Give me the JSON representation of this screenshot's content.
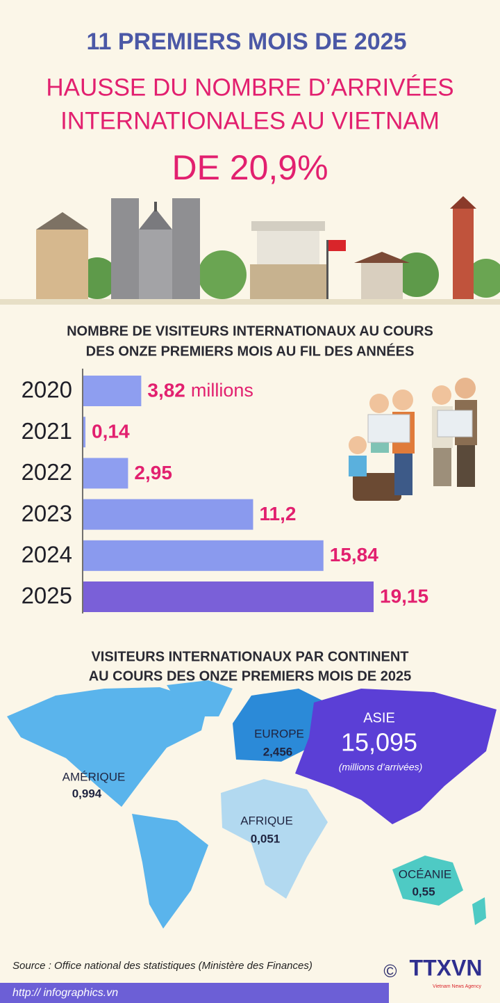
{
  "header": {
    "line1": "11 PREMIERS MOIS DE 2025",
    "line2": "HAUSSE DU NOMBRE D’ARRIVÉES",
    "line3": "INTERNATIONALES AU VIETNAM",
    "line4": "DE 20,9%"
  },
  "chart_data": {
    "type": "bar",
    "orientation": "horizontal",
    "title": [
      "NOMBRE DE VISITEURS INTERNATIONAUX AU COURS",
      "DES ONZE PREMIERS MOIS AU FIL DES ANNÉES"
    ],
    "categories": [
      "2020",
      "2021",
      "2022",
      "2023",
      "2024",
      "2025"
    ],
    "values": [
      3.82,
      0.14,
      2.95,
      11.2,
      15.84,
      19.15
    ],
    "value_labels": [
      "3,82",
      "0,14",
      "2,95",
      "11,2",
      "15,84",
      "19,15"
    ],
    "unit": "millions",
    "colors": [
      "#8e9ef0",
      "#8e9ef0",
      "#8e9ef0",
      "#8a9aee",
      "#8a9aee",
      "#7a60d8"
    ]
  },
  "map": {
    "title": [
      "VISITEURS INTERNATIONAUX PAR CONTINENT",
      "AU COURS DES ONZE PREMIERS MOIS DE 2025"
    ],
    "regions": [
      {
        "name": "AMÉRIQUE",
        "value": "0,994"
      },
      {
        "name": "EUROPE",
        "value": "2,456"
      },
      {
        "name": "ASIE",
        "value": "15,095",
        "note": "(millions d’arrivées)"
      },
      {
        "name": "AFRIQUE",
        "value": "0,051"
      },
      {
        "name": "OCÉANIE",
        "value": "0,55"
      }
    ]
  },
  "footer": {
    "source": "Source : Office national des statistiques (Ministère des Finances)",
    "copyright": "©",
    "logo": "TTXVN",
    "agency": "Vietnam News Agency",
    "url": "http:// infographics.vn"
  }
}
